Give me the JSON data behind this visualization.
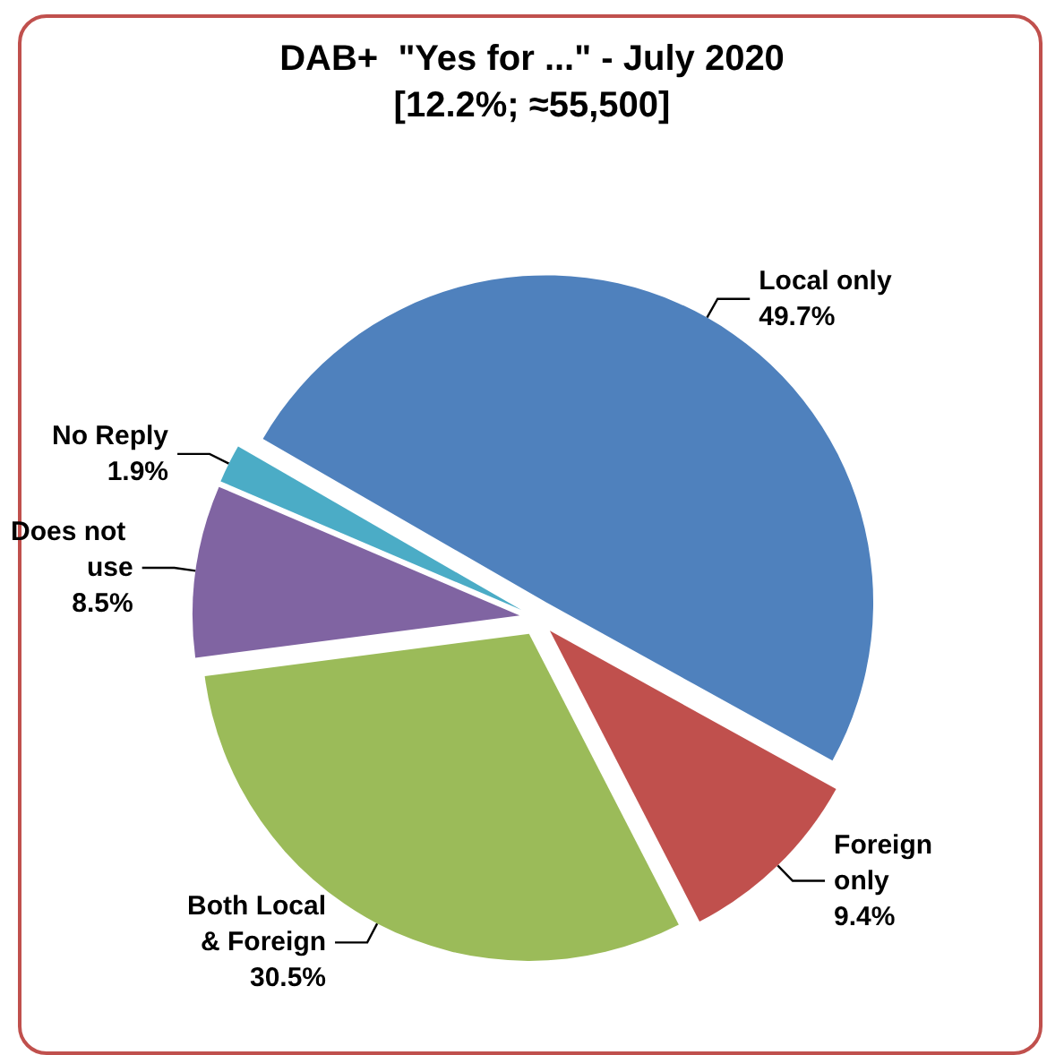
{
  "chart_data": {
    "type": "pie",
    "title": "DAB+  \"Yes for ...\" - July 2020",
    "subtitle": "[12.2%; ≈55,500]",
    "categories": [
      "Local only",
      "Foreign only",
      "Both Local & Foreign",
      "Does not use",
      "No Reply"
    ],
    "values": [
      49.7,
      9.4,
      30.5,
      8.5,
      1.9
    ],
    "value_labels": [
      "49.7%",
      "9.4%",
      "30.5%",
      "8.5%",
      "1.9%"
    ],
    "colors": [
      "#4f81bd",
      "#c0504d",
      "#9bbb59",
      "#8064a2",
      "#4bacc6"
    ],
    "legend": false
  }
}
